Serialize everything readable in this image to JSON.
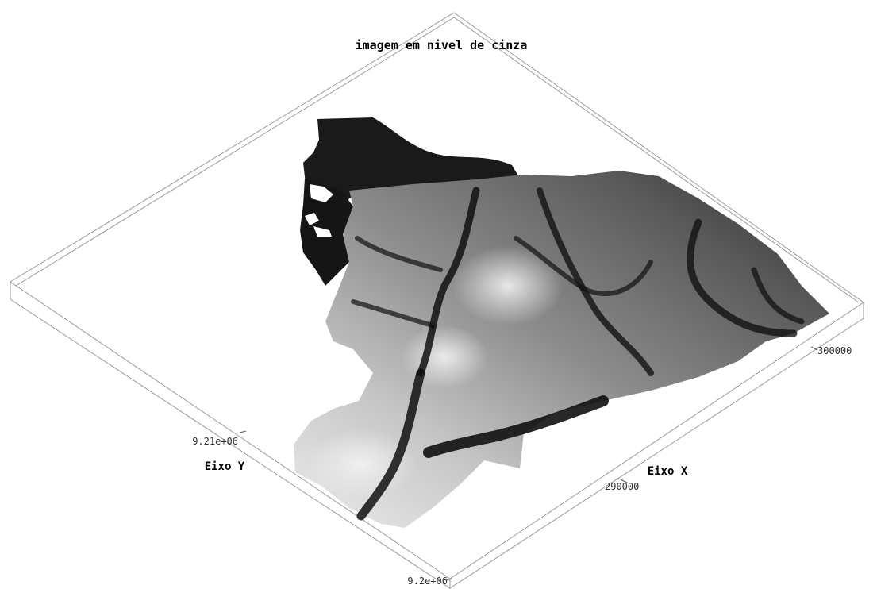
{
  "chart_data": {
    "type": "surface",
    "title": "imagem em nivel de cinza",
    "xlabel": "Eixo X",
    "ylabel": "Eixo Y",
    "x_ticks": [
      {
        "value": 290000,
        "label": "290000"
      },
      {
        "value": 300000,
        "label": "300000"
      }
    ],
    "y_ticks": [
      {
        "value": 9200000,
        "label": "9.2e+06"
      },
      {
        "value": 9210000,
        "label": "9.21e+06"
      }
    ],
    "colormap": "grayscale",
    "surface_color_low": "#000000",
    "surface_color_high": "#f0f0f0",
    "box_color": "#9a9a9a",
    "background": "#ffffff"
  }
}
